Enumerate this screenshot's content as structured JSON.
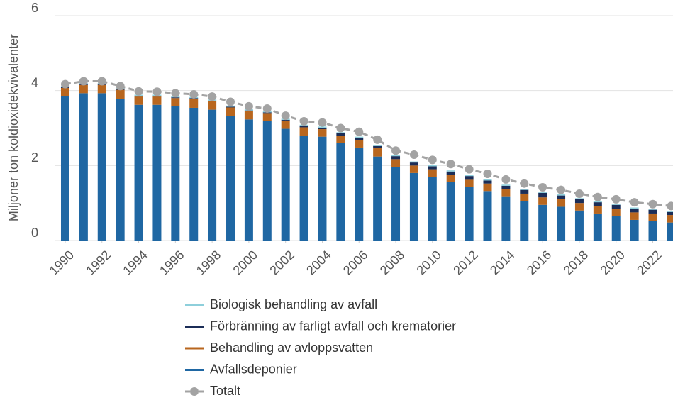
{
  "chart_data": {
    "type": "bar",
    "stacked": true,
    "ylabel": "Miljoner ton koldioxidekvivalenter",
    "x": [
      1990,
      1991,
      1992,
      1993,
      1994,
      1995,
      1996,
      1997,
      1998,
      1999,
      2000,
      2001,
      2002,
      2003,
      2004,
      2005,
      2006,
      2007,
      2008,
      2009,
      2010,
      2011,
      2012,
      2013,
      2014,
      2015,
      2016,
      2017,
      2018,
      2019,
      2020,
      2021,
      2022,
      2023
    ],
    "xlim": [
      1989.46,
      2023.1
    ],
    "xticks": [
      1990,
      1992,
      1994,
      1996,
      1998,
      2000,
      2002,
      2004,
      2006,
      2008,
      2010,
      2012,
      2014,
      2016,
      2018,
      2020,
      2022
    ],
    "ylim": [
      0,
      6
    ],
    "yticks": [
      0,
      2,
      4,
      6
    ],
    "grid": true,
    "series": [
      {
        "name": "Biologisk behandling av avfall",
        "color": "#8ecfdb",
        "values": [
          0.03,
          0.03,
          0.03,
          0.03,
          0.03,
          0.03,
          0.03,
          0.03,
          0.03,
          0.03,
          0.03,
          0.03,
          0.03,
          0.03,
          0.03,
          0.03,
          0.03,
          0.03,
          0.03,
          0.03,
          0.03,
          0.03,
          0.03,
          0.03,
          0.03,
          0.03,
          0.03,
          0.03,
          0.03,
          0.03,
          0.03,
          0.03,
          0.03,
          0.03
        ]
      },
      {
        "name": "Förbränning av farligt avfall och krematorier",
        "color": "#1b2d57",
        "values": [
          0.02,
          0.02,
          0.02,
          0.02,
          0.02,
          0.02,
          0.02,
          0.02,
          0.02,
          0.02,
          0.02,
          0.02,
          0.02,
          0.04,
          0.04,
          0.06,
          0.06,
          0.06,
          0.08,
          0.08,
          0.08,
          0.08,
          0.1,
          0.08,
          0.08,
          0.1,
          0.12,
          0.1,
          0.1,
          0.1,
          0.1,
          0.1,
          0.1,
          0.08
        ]
      },
      {
        "name": "Behandling av avloppsvatten",
        "color": "#b8661e",
        "values": [
          0.22,
          0.22,
          0.22,
          0.25,
          0.22,
          0.22,
          0.22,
          0.24,
          0.22,
          0.22,
          0.22,
          0.22,
          0.22,
          0.22,
          0.2,
          0.2,
          0.2,
          0.22,
          0.22,
          0.2,
          0.2,
          0.2,
          0.2,
          0.2,
          0.2,
          0.2,
          0.2,
          0.2,
          0.2,
          0.2,
          0.2,
          0.2,
          0.2,
          0.2
        ]
      },
      {
        "name": "Avfallsdeponier",
        "color": "#1f67a3",
        "values": [
          3.85,
          3.93,
          3.93,
          3.77,
          3.62,
          3.62,
          3.58,
          3.54,
          3.49,
          3.33,
          3.23,
          3.18,
          2.98,
          2.8,
          2.77,
          2.6,
          2.48,
          2.24,
          1.95,
          1.8,
          1.7,
          1.56,
          1.42,
          1.32,
          1.18,
          1.05,
          0.95,
          0.9,
          0.8,
          0.72,
          0.65,
          0.55,
          0.52,
          0.48
        ]
      },
      {
        "name": "Totalt",
        "type": "line",
        "dashed": true,
        "color": "#a3a3a3",
        "values": [
          4.17,
          4.25,
          4.25,
          4.12,
          3.98,
          3.97,
          3.93,
          3.9,
          3.84,
          3.7,
          3.58,
          3.52,
          3.33,
          3.18,
          3.15,
          3.0,
          2.9,
          2.69,
          2.4,
          2.29,
          2.15,
          2.04,
          1.9,
          1.78,
          1.63,
          1.52,
          1.42,
          1.35,
          1.25,
          1.16,
          1.1,
          1.02,
          0.97,
          0.92
        ]
      }
    ]
  }
}
